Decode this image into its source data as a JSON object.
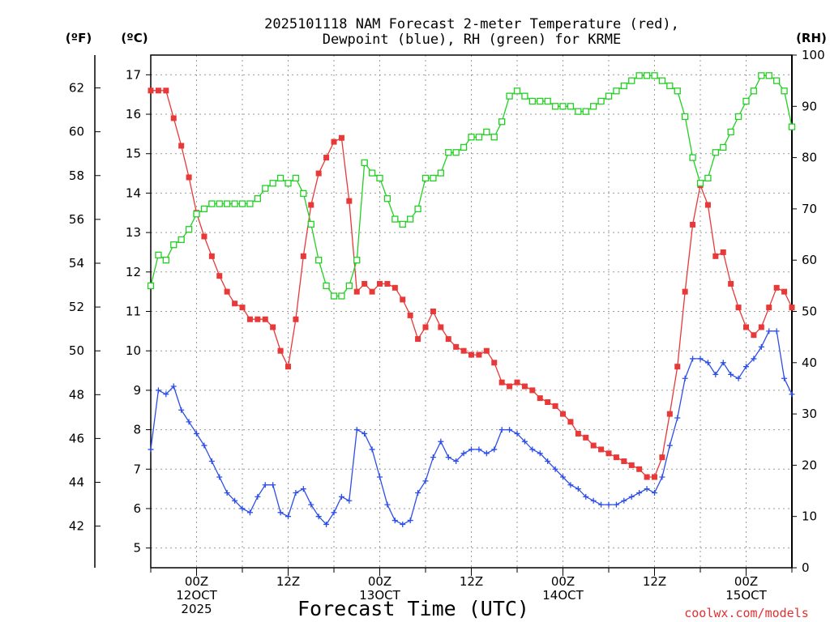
{
  "chart_data": {
    "type": "line",
    "title_line1": "2025101118 NAM Forecast 2-meter Temperature (red),",
    "title_line2": "Dewpoint (blue), RH (green) for KRME",
    "xlabel": "Forecast Time (UTC)",
    "credit": "coolwx.com/models",
    "unit_f": "(ºF)",
    "unit_c": "(ºC)",
    "unit_rh": "(RH)",
    "c_ticks": [
      "5",
      "6",
      "7",
      "8",
      "9",
      "10",
      "11",
      "12",
      "13",
      "14",
      "15",
      "16",
      "17"
    ],
    "f_ticks": [
      "42",
      "44",
      "46",
      "48",
      "50",
      "52",
      "54",
      "56",
      "58",
      "60",
      "62"
    ],
    "rh_ticks": [
      "0",
      "10",
      "20",
      "30",
      "40",
      "50",
      "60",
      "70",
      "80",
      "90",
      "100"
    ],
    "x_ticks": [
      {
        "h": 6,
        "lines": [
          "00Z",
          "12OCT",
          "2025"
        ]
      },
      {
        "h": 18,
        "lines": [
          "12Z"
        ]
      },
      {
        "h": 30,
        "lines": [
          "00Z",
          "13OCT"
        ]
      },
      {
        "h": 42,
        "lines": [
          "12Z"
        ]
      },
      {
        "h": 54,
        "lines": [
          "00Z",
          "14OCT"
        ]
      },
      {
        "h": 66,
        "lines": [
          "12Z"
        ]
      },
      {
        "h": 78,
        "lines": [
          "00Z",
          "15OCT"
        ]
      }
    ],
    "x_range_hours": [
      0,
      84
    ],
    "c_range": [
      4.5,
      17.5
    ],
    "rh_range": [
      0,
      100
    ],
    "series": [
      {
        "name": "Temperature",
        "unit": "°C",
        "color": "#e83838",
        "marker": "filled-square",
        "values": [
          16.6,
          16.6,
          16.6,
          15.9,
          15.2,
          14.4,
          13.5,
          12.9,
          12.4,
          11.9,
          11.5,
          11.2,
          11.1,
          10.8,
          10.8,
          10.8,
          10.6,
          10.0,
          9.6,
          10.8,
          12.4,
          13.7,
          14.5,
          14.9,
          15.3,
          15.4,
          13.8,
          11.5,
          11.7,
          11.5,
          11.7,
          11.7,
          11.6,
          11.3,
          10.9,
          10.3,
          10.6,
          11.0,
          10.6,
          10.3,
          10.1,
          10.0,
          9.9,
          9.9,
          10.0,
          9.7,
          9.2,
          9.1,
          9.2,
          9.1,
          9.0,
          8.8,
          8.7,
          8.6,
          8.4,
          8.2,
          7.9,
          7.8,
          7.6,
          7.5,
          7.4,
          7.3,
          7.2,
          7.1,
          7.0,
          6.8,
          6.8,
          7.3,
          8.4,
          9.6,
          11.5,
          13.2,
          14.2,
          13.7,
          12.4,
          12.5,
          11.7,
          11.1,
          10.6,
          10.4,
          10.6,
          11.1,
          11.6,
          11.5,
          11.1
        ]
      },
      {
        "name": "Dewpoint",
        "unit": "°C",
        "color": "#2c4ee8",
        "marker": "plus",
        "values": [
          7.5,
          9.0,
          8.9,
          9.1,
          8.5,
          8.2,
          7.9,
          7.6,
          7.2,
          6.8,
          6.4,
          6.2,
          6.0,
          5.9,
          6.3,
          6.6,
          6.6,
          5.9,
          5.8,
          6.4,
          6.5,
          6.1,
          5.8,
          5.6,
          5.9,
          6.3,
          6.2,
          8.0,
          7.9,
          7.5,
          6.8,
          6.1,
          5.7,
          5.6,
          5.7,
          6.4,
          6.7,
          7.3,
          7.7,
          7.3,
          7.2,
          7.4,
          7.5,
          7.5,
          7.4,
          7.5,
          8.0,
          8.0,
          7.9,
          7.7,
          7.5,
          7.4,
          7.2,
          7.0,
          6.8,
          6.6,
          6.5,
          6.3,
          6.2,
          6.1,
          6.1,
          6.1,
          6.2,
          6.3,
          6.4,
          6.5,
          6.4,
          6.8,
          7.6,
          8.3,
          9.3,
          9.8,
          9.8,
          9.7,
          9.4,
          9.7,
          9.4,
          9.3,
          9.6,
          9.8,
          10.1,
          10.5,
          10.5,
          9.3,
          8.9
        ]
      },
      {
        "name": "RH",
        "unit": "%",
        "color": "#22d022",
        "marker": "open-square",
        "values": [
          55,
          61,
          60,
          63,
          64,
          66,
          69,
          70,
          71,
          71,
          71,
          71,
          71,
          71,
          72,
          74,
          75,
          76,
          75,
          76,
          73,
          67,
          60,
          55,
          53,
          53,
          55,
          60,
          79,
          77,
          76,
          72,
          68,
          67,
          68,
          70,
          76,
          76,
          77,
          81,
          81,
          82,
          84,
          84,
          85,
          84,
          87,
          92,
          93,
          92,
          91,
          91,
          91,
          90,
          90,
          90,
          89,
          89,
          90,
          91,
          92,
          93,
          94,
          95,
          96,
          96,
          96,
          95,
          94,
          93,
          88,
          80,
          75,
          76,
          81,
          82,
          85,
          88,
          91,
          93,
          96,
          96,
          95,
          93,
          86
        ]
      }
    ]
  }
}
